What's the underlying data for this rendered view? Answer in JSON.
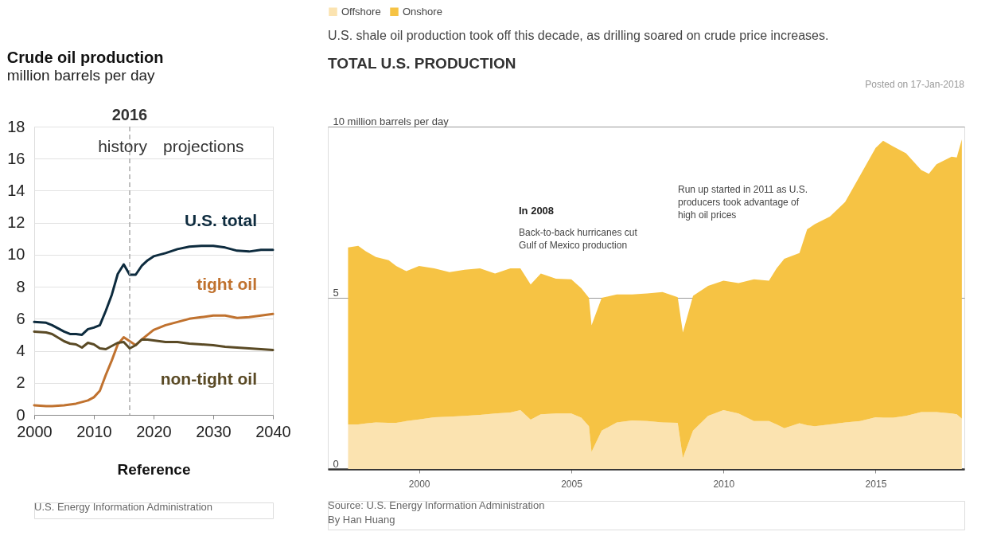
{
  "chart_data": [
    {
      "type": "line",
      "title": "Crude oil production",
      "subtitle": "million barrels per day",
      "xlabel": "Reference",
      "x": [
        2000,
        2002,
        2003,
        2005,
        2006,
        2007,
        2008,
        2009,
        2010,
        2011,
        2012,
        2013,
        2014,
        2015,
        2016,
        2017,
        2018,
        2019,
        2020,
        2022,
        2024,
        2026,
        2028,
        2030,
        2032,
        2034,
        2036,
        2038,
        2040
      ],
      "series": [
        {
          "name": "U.S. total",
          "color": "#0d2b3e",
          "values": [
            5.8,
            5.75,
            5.6,
            5.2,
            5.05,
            5.05,
            5.0,
            5.35,
            5.45,
            5.6,
            6.5,
            7.5,
            8.8,
            9.4,
            8.75,
            8.75,
            9.3,
            9.65,
            9.9,
            10.1,
            10.35,
            10.5,
            10.55,
            10.55,
            10.45,
            10.25,
            10.2,
            10.3,
            10.3
          ]
        },
        {
          "name": "tight oil",
          "color": "#c0722f",
          "values": [
            0.6,
            0.55,
            0.55,
            0.6,
            0.65,
            0.7,
            0.8,
            0.9,
            1.1,
            1.5,
            2.5,
            3.4,
            4.4,
            4.85,
            4.6,
            4.35,
            4.7,
            5.0,
            5.3,
            5.6,
            5.8,
            6.0,
            6.1,
            6.2,
            6.2,
            6.05,
            6.1,
            6.2,
            6.3
          ]
        },
        {
          "name": "non-tight oil",
          "color": "#5a4a25",
          "values": [
            5.2,
            5.15,
            5.05,
            4.6,
            4.45,
            4.4,
            4.2,
            4.5,
            4.4,
            4.15,
            4.1,
            4.3,
            4.5,
            4.55,
            4.15,
            4.35,
            4.7,
            4.7,
            4.65,
            4.55,
            4.55,
            4.45,
            4.4,
            4.35,
            4.25,
            4.2,
            4.15,
            4.1,
            4.05
          ]
        }
      ],
      "xlim": [
        2000,
        2040
      ],
      "xticks": [
        2000,
        2010,
        2020,
        2030,
        2040
      ],
      "ylim": [
        0,
        18
      ],
      "yticks": [
        0,
        2,
        4,
        6,
        8,
        10,
        12,
        14,
        16,
        18
      ],
      "grid": "y",
      "ref_lines": [
        {
          "axis": "x",
          "value": 2016,
          "label": "2016",
          "color": "#aaaaaa",
          "line_style": "dashed"
        }
      ],
      "annotations": [
        "history",
        "projections",
        "U.S. Energy Information Administration"
      ]
    },
    {
      "type": "area",
      "title": "U.S. shale oil production took off this decade, as drilling soared on crude price increases.",
      "subtitle": "TOTAL U.S. PRODUCTION",
      "x": [
        "1997-09",
        "1998-01",
        "1998-04",
        "1998-08",
        "1999-01",
        "1999-04",
        "1999-08",
        "2000-01",
        "2000-07",
        "2001-01",
        "2001-07",
        "2002-01",
        "2002-07",
        "2003-01",
        "2003-05",
        "2003-09",
        "2004-01",
        "2004-07",
        "2005-01",
        "2005-05",
        "2005-08",
        "2005-09",
        "2006-01",
        "2006-07",
        "2007-01",
        "2007-07",
        "2008-01",
        "2008-07",
        "2008-09",
        "2009-01",
        "2009-07",
        "2010-01",
        "2010-07",
        "2011-01",
        "2011-07",
        "2011-10",
        "2012-01",
        "2012-07",
        "2012-10",
        "2013-01",
        "2013-07",
        "2014-01",
        "2014-07",
        "2015-01",
        "2015-04",
        "2015-08",
        "2016-01",
        "2016-07",
        "2016-10",
        "2017-01",
        "2017-07",
        "2017-09",
        "2017-11"
      ],
      "series": [
        {
          "name": "Offshore",
          "color": "#fbe3b0",
          "values": [
            1.3,
            1.3,
            1.33,
            1.36,
            1.35,
            1.35,
            1.4,
            1.45,
            1.51,
            1.53,
            1.55,
            1.58,
            1.62,
            1.65,
            1.72,
            1.44,
            1.6,
            1.62,
            1.62,
            1.5,
            1.25,
            0.5,
            1.12,
            1.36,
            1.42,
            1.4,
            1.36,
            1.35,
            0.32,
            1.12,
            1.55,
            1.72,
            1.62,
            1.4,
            1.4,
            1.3,
            1.19,
            1.34,
            1.28,
            1.25,
            1.3,
            1.36,
            1.4,
            1.51,
            1.5,
            1.5,
            1.55,
            1.66,
            1.66,
            1.66,
            1.62,
            1.6,
            1.47
          ]
        },
        {
          "name": "Onshore",
          "color": "#f6c344",
          "values": [
            5.17,
            5.22,
            5.03,
            4.83,
            4.75,
            4.58,
            4.38,
            4.48,
            4.35,
            4.22,
            4.27,
            4.28,
            4.09,
            4.21,
            4.14,
            3.95,
            4.11,
            3.94,
            3.92,
            3.78,
            3.75,
            3.7,
            3.88,
            3.74,
            3.68,
            3.73,
            3.81,
            3.67,
            3.67,
            3.94,
            3.8,
            3.78,
            3.81,
            4.14,
            4.1,
            4.56,
            4.95,
            4.97,
            5.72,
            5.9,
            6.07,
            6.44,
            7.18,
            7.87,
            8.09,
            7.92,
            7.67,
            7.07,
            6.96,
            7.24,
            7.5,
            7.5,
            8.16
          ]
        }
      ],
      "stacked": true,
      "xlim": [
        "1997-01",
        "2017-12"
      ],
      "xticks": [
        "2000",
        "2005",
        "2010",
        "2015"
      ],
      "ylim": [
        0,
        10
      ],
      "yticks": [
        0,
        5,
        {
          "value": 10,
          "label": "10 million barrels per day"
        }
      ],
      "grid": "y",
      "legend": "top left",
      "annotations": [
        "Posted on 17-Jan-2018",
        "In 2008",
        "Back-to-back hurricanes cut Gulf of Mexico production",
        "Run up started in 2011 as U.S. producers took advantage of high oil prices",
        "Source: U.S. Energy Information Administration",
        "By Han Huang"
      ]
    }
  ]
}
